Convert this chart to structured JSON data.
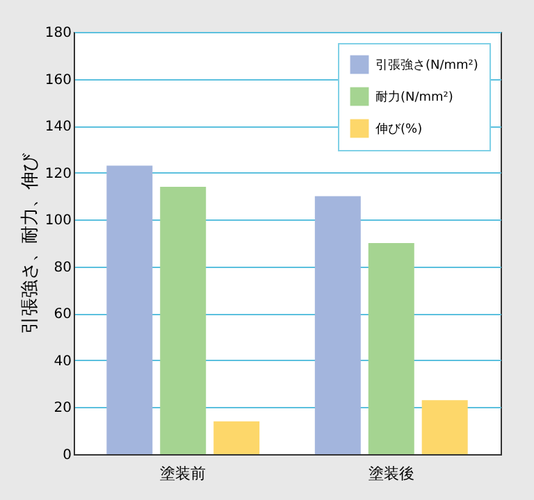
{
  "chart_data": {
    "type": "bar",
    "ylabel": "引張強さ、耐力、伸び",
    "categories": [
      "塗装前",
      "塗装後"
    ],
    "series": [
      {
        "name": "引張強さ(N/mm²)",
        "color": "#a3b5dd",
        "values": [
          123,
          110
        ]
      },
      {
        "name": "耐力(N/mm²)",
        "color": "#a5d491",
        "values": [
          114,
          90
        ]
      },
      {
        "name": "伸び(%)",
        "color": "#fdd76a",
        "values": [
          14,
          23
        ]
      }
    ],
    "ylim": [
      0,
      180
    ],
    "yticks": [
      0,
      20,
      40,
      60,
      80,
      100,
      120,
      140,
      160,
      180
    ],
    "grid": "y",
    "legend": "top right"
  }
}
